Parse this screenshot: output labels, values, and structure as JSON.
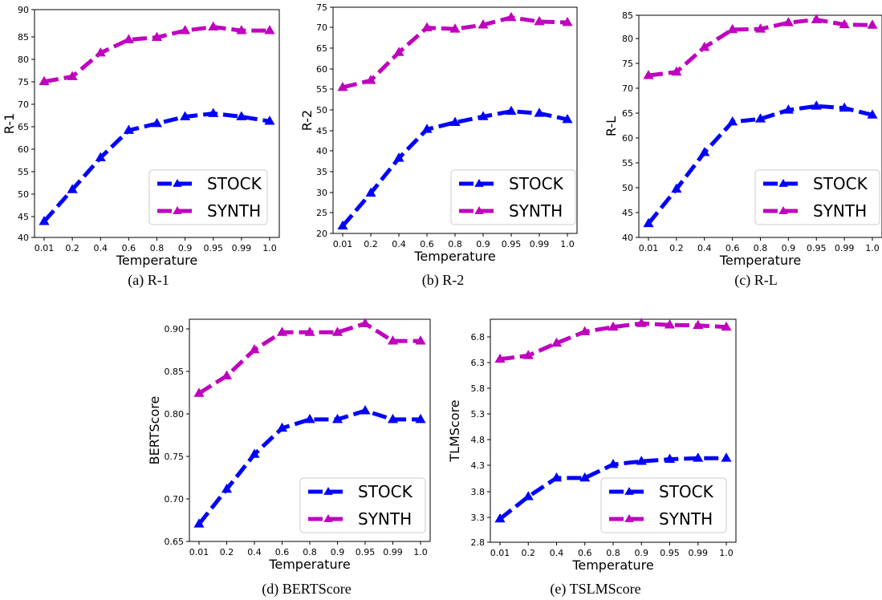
{
  "figure": {
    "captions": [
      "(a) R-1",
      "(b) R-2",
      "(c) R-L",
      "(d) BERTScore",
      "(e) TSLMScore"
    ]
  },
  "chart_data": [
    {
      "type": "line",
      "categories": [
        "0.01",
        "0.2",
        "0.4",
        "0.6",
        "0.8",
        "0.9",
        "0.95",
        "0.99",
        "1.0"
      ],
      "xlabel": "Temperature",
      "ylabel": "R-1",
      "ylim": [
        40,
        90
      ],
      "yticks": [
        "40",
        "45",
        "50",
        "55",
        "60",
        "65",
        "70",
        "75",
        "80",
        "85",
        "90"
      ],
      "series": [
        {
          "name": "STOCK",
          "color": "#0000ff",
          "values": [
            43.5,
            50.5,
            57.5,
            63.5,
            65.0,
            66.5,
            67.2,
            66.5,
            65.5
          ]
        },
        {
          "name": "SYNTH",
          "color": "#bf00bf",
          "values": [
            74.2,
            75.3,
            80.5,
            83.4,
            83.9,
            85.4,
            86.2,
            85.4,
            85.4
          ]
        }
      ],
      "legend": "lower-right",
      "grid": false
    },
    {
      "type": "line",
      "categories": [
        "0.01",
        "0.2",
        "0.4",
        "0.6",
        "0.8",
        "0.9",
        "0.95",
        "0.99",
        "1.0"
      ],
      "xlabel": "Temperature",
      "ylabel": "R-2",
      "ylim": [
        20,
        75
      ],
      "yticks": [
        "20",
        "25",
        "30",
        "35",
        "40",
        "45",
        "50",
        "55",
        "60",
        "65",
        "70",
        "75"
      ],
      "series": [
        {
          "name": "STOCK",
          "color": "#0000ff",
          "values": [
            21.8,
            29.8,
            38.3,
            45.3,
            47.0,
            48.4,
            49.7,
            49.2,
            47.7
          ]
        },
        {
          "name": "SYNTH",
          "color": "#bf00bf",
          "values": [
            55.5,
            57.2,
            64.0,
            70.0,
            69.7,
            70.7,
            72.5,
            71.5,
            71.3
          ]
        }
      ],
      "legend": "lower-right",
      "grid": false
    },
    {
      "type": "line",
      "categories": [
        "0.01",
        "0.2",
        "0.4",
        "0.6",
        "0.8",
        "0.9",
        "0.95",
        "0.99",
        "1.0"
      ],
      "xlabel": "Temperature",
      "ylabel": "R-L",
      "ylim": [
        40,
        85
      ],
      "yticks": [
        "40",
        "45",
        "50",
        "55",
        "60",
        "65",
        "70",
        "75",
        "80",
        "85"
      ],
      "series": [
        {
          "name": "STOCK",
          "color": "#0000ff",
          "values": [
            42.8,
            49.8,
            57.2,
            63.4,
            64.0,
            65.8,
            66.6,
            66.2,
            64.8
          ]
        },
        {
          "name": "SYNTH",
          "color": "#bf00bf",
          "values": [
            72.8,
            73.5,
            78.5,
            82.1,
            82.2,
            83.5,
            84.1,
            83.1,
            83.0
          ]
        }
      ],
      "legend": "lower-right",
      "grid": false
    },
    {
      "type": "line",
      "categories": [
        "0.01",
        "0.2",
        "0.4",
        "0.6",
        "0.8",
        "0.9",
        "0.95",
        "0.99",
        "1.0"
      ],
      "xlabel": "Temperature",
      "ylabel": "BERTScore",
      "ylim": [
        0.65,
        0.905
      ],
      "yticks": [
        "0.65",
        "0.70",
        "0.75",
        "0.80",
        "0.85",
        "0.90"
      ],
      "series": [
        {
          "name": "STOCK",
          "color": "#0000ff",
          "values": [
            0.67,
            0.71,
            0.75,
            0.78,
            0.79,
            0.79,
            0.8,
            0.79,
            0.79
          ]
        },
        {
          "name": "SYNTH",
          "color": "#bf00bf",
          "values": [
            0.82,
            0.84,
            0.87,
            0.89,
            0.89,
            0.89,
            0.9,
            0.88,
            0.88
          ]
        }
      ],
      "legend": "lower-right",
      "grid": false
    },
    {
      "type": "line",
      "categories": [
        "0.01",
        "0.2",
        "0.4",
        "0.6",
        "0.8",
        "0.9",
        "0.95",
        "0.99",
        "1.0"
      ],
      "xlabel": "Temperature",
      "ylabel": "TLMScore",
      "ylim": [
        2.8,
        7.1
      ],
      "yticks": [
        "2.8",
        "3.3",
        "3.8",
        "4.3",
        "4.8",
        "5.3",
        "5.8",
        "6.3",
        "6.8"
      ],
      "series": [
        {
          "name": "STOCK",
          "color": "#0000ff",
          "values": [
            3.25,
            3.68,
            4.04,
            4.04,
            4.3,
            4.36,
            4.4,
            4.42,
            4.42
          ]
        },
        {
          "name": "SYNTH",
          "color": "#bf00bf",
          "values": [
            6.33,
            6.4,
            6.64,
            6.86,
            6.95,
            7.02,
            6.99,
            6.98,
            6.95
          ]
        }
      ],
      "legend": "lower-right",
      "grid": false
    }
  ]
}
